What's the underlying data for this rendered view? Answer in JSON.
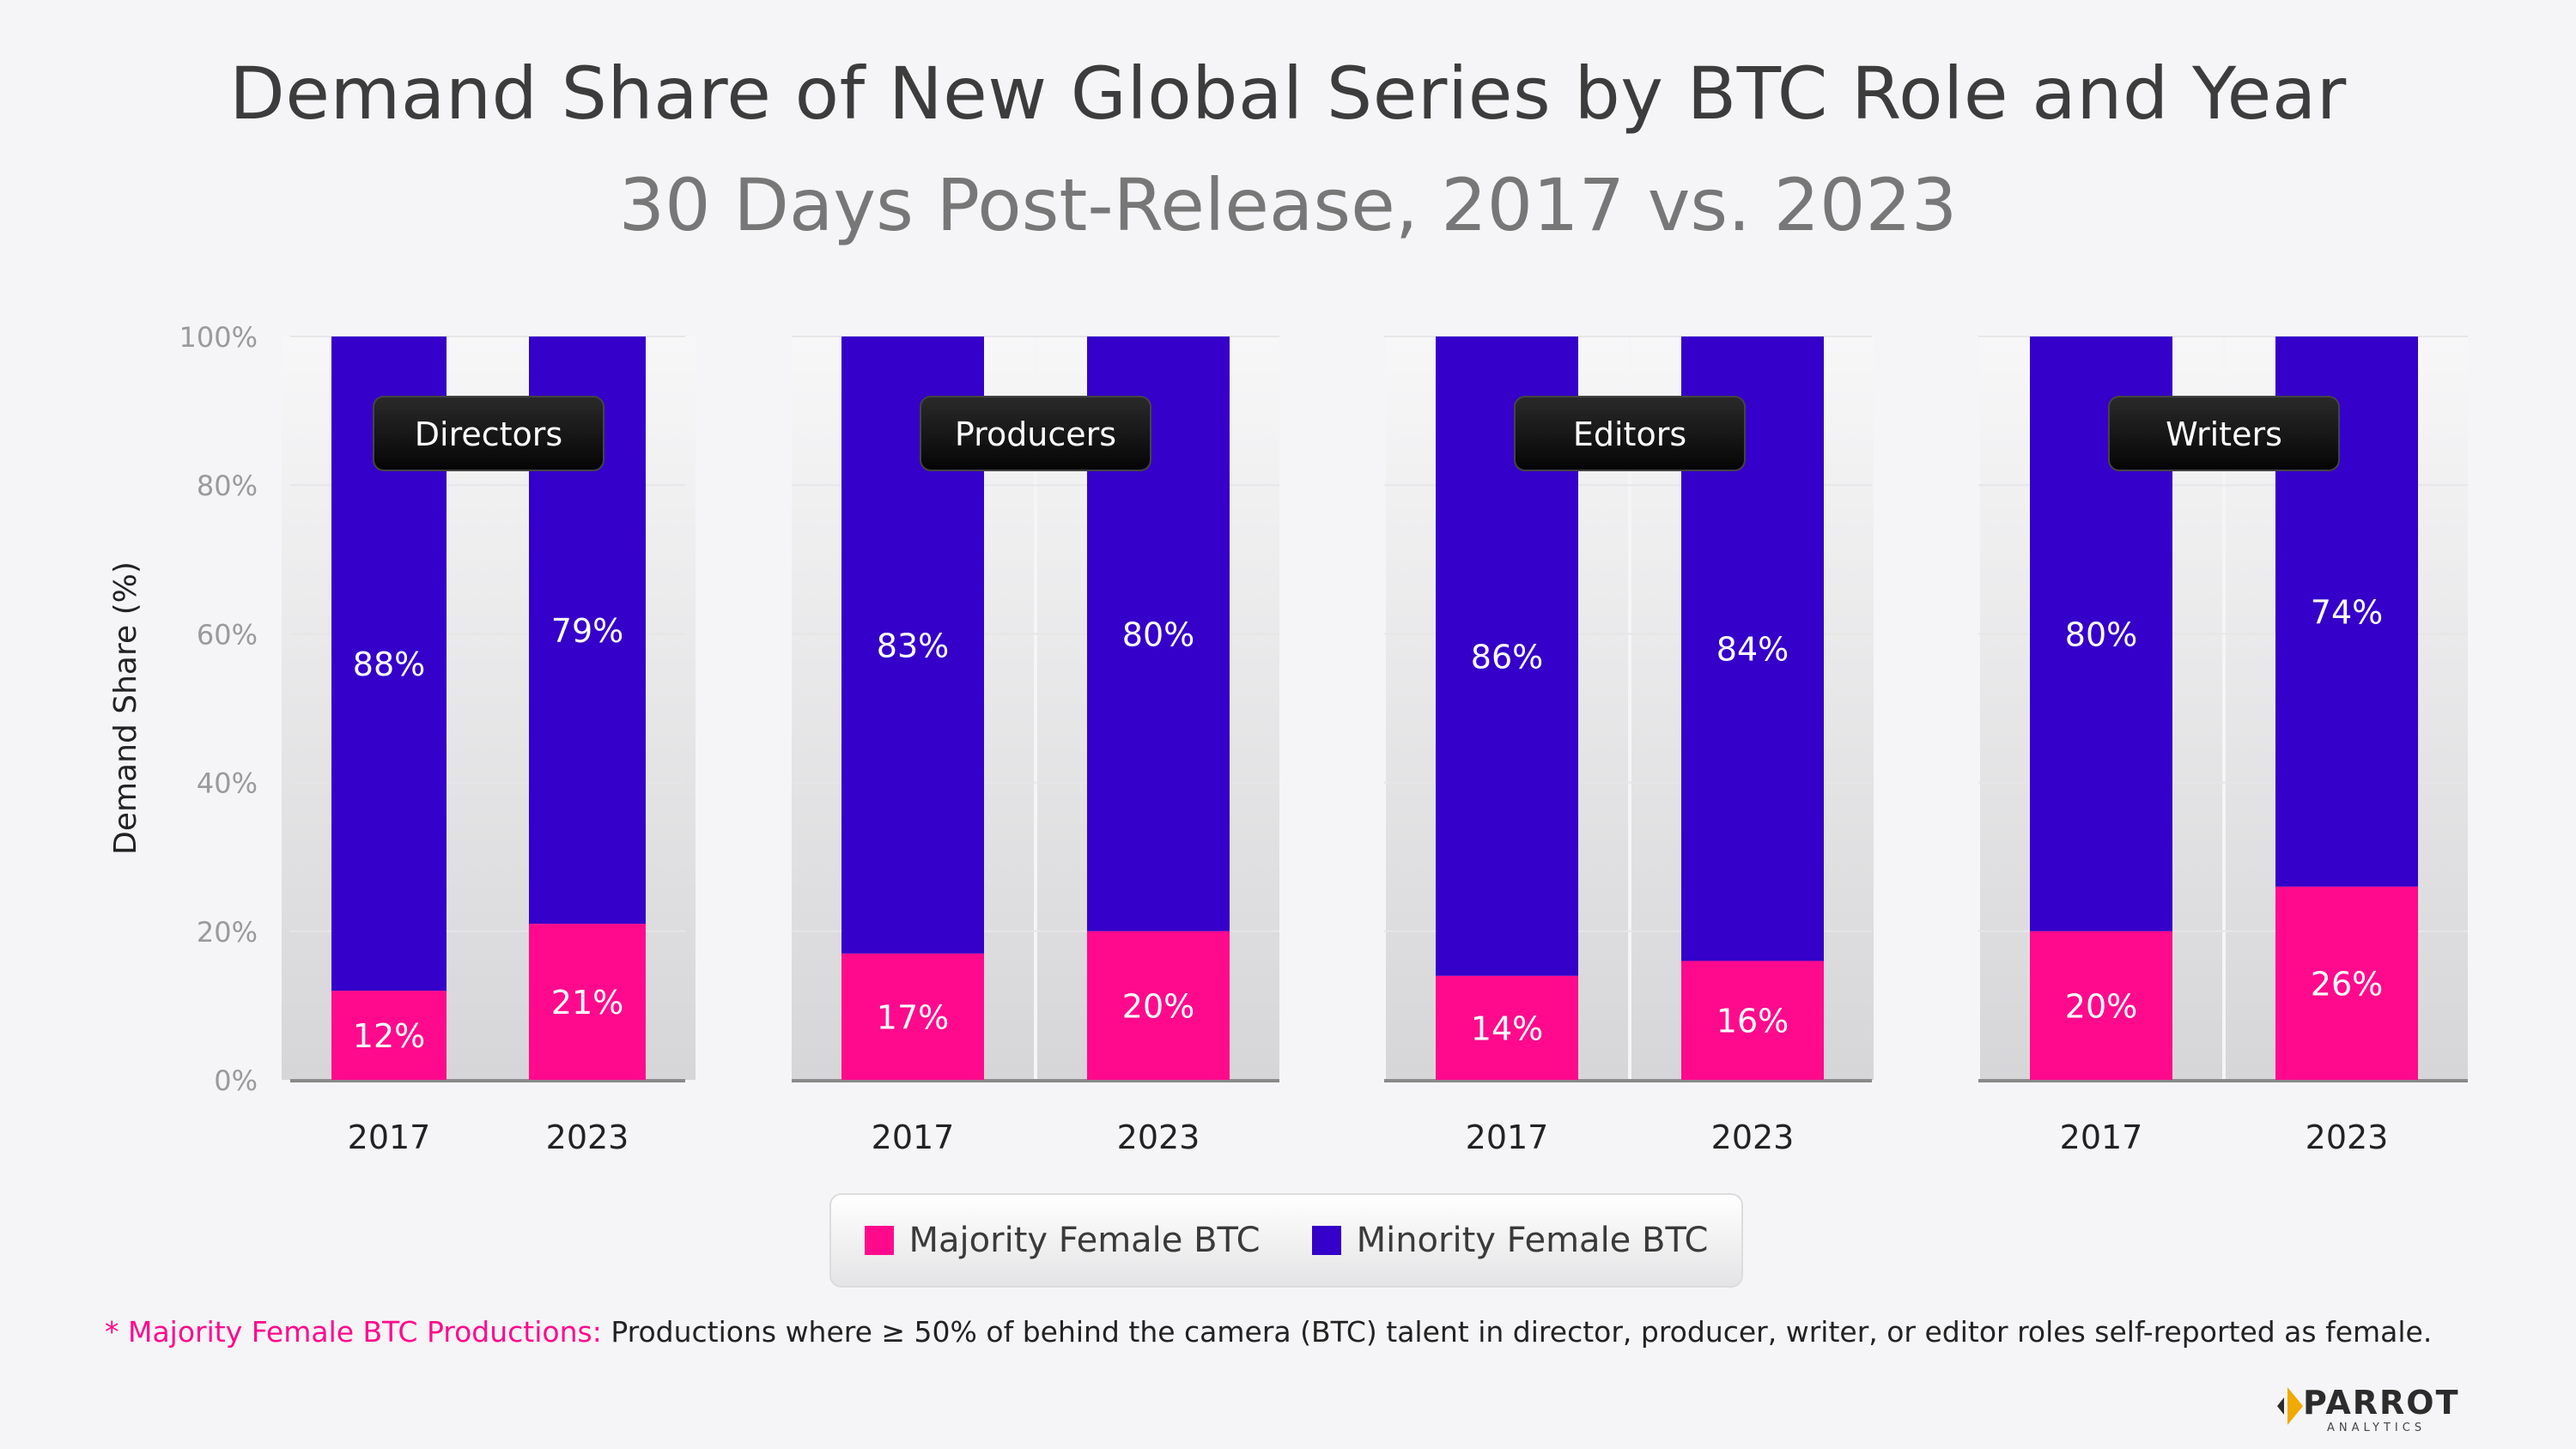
{
  "title": "Demand Share of New Global Series by BTC Role and Year",
  "subtitle": "30 Days Post-Release, 2017 vs. 2023",
  "colors": {
    "majority": "#ff0a8c",
    "minority": "#3500c9",
    "axis_text": "#9a9a9a",
    "label_box": "#111111"
  },
  "chart_data": {
    "type": "bar",
    "stacked": true,
    "ylabel": "Demand Share (%)",
    "ylim": [
      0,
      100
    ],
    "yticks": [
      "0%",
      "20%",
      "40%",
      "60%",
      "80%",
      "100%"
    ],
    "grid": true,
    "legend_position": "bottom",
    "panels": [
      {
        "role": "Directors",
        "categories": [
          "2017",
          "2023"
        ],
        "series": [
          {
            "name": "Majority Female BTC",
            "values": [
              12,
              21
            ],
            "labels": [
              "12%",
              "21%"
            ]
          },
          {
            "name": "Minority Female BTC",
            "values": [
              88,
              79
            ],
            "labels": [
              "88%",
              "79%"
            ]
          }
        ]
      },
      {
        "role": "Producers",
        "categories": [
          "2017",
          "2023"
        ],
        "series": [
          {
            "name": "Majority Female BTC",
            "values": [
              17,
              20
            ],
            "labels": [
              "17%",
              "20%"
            ]
          },
          {
            "name": "Minority Female BTC",
            "values": [
              83,
              80
            ],
            "labels": [
              "83%",
              "80%"
            ]
          }
        ]
      },
      {
        "role": "Editors",
        "categories": [
          "2017",
          "2023"
        ],
        "series": [
          {
            "name": "Majority Female BTC",
            "values": [
              14,
              16
            ],
            "labels": [
              "14%",
              "16%"
            ]
          },
          {
            "name": "Minority Female BTC",
            "values": [
              86,
              84
            ],
            "labels": [
              "86%",
              "84%"
            ]
          }
        ]
      },
      {
        "role": "Writers",
        "categories": [
          "2017",
          "2023"
        ],
        "series": [
          {
            "name": "Majority Female BTC",
            "values": [
              20,
              26
            ],
            "labels": [
              "20%",
              "26%"
            ]
          },
          {
            "name": "Minority Female BTC",
            "values": [
              80,
              74
            ],
            "labels": [
              "80%",
              "74%"
            ]
          }
        ]
      }
    ]
  },
  "legend": {
    "majority_label": "Majority Female BTC",
    "minority_label": "Minority Female BTC"
  },
  "footnote": {
    "highlight": "* Majority Female BTC Productions:",
    "text": " Productions where ≥ 50% of behind the camera (BTC) talent in director, producer, writer, or editor roles self-reported as female."
  },
  "logo": {
    "word": "PARROT",
    "sub": "ANALYTICS"
  }
}
